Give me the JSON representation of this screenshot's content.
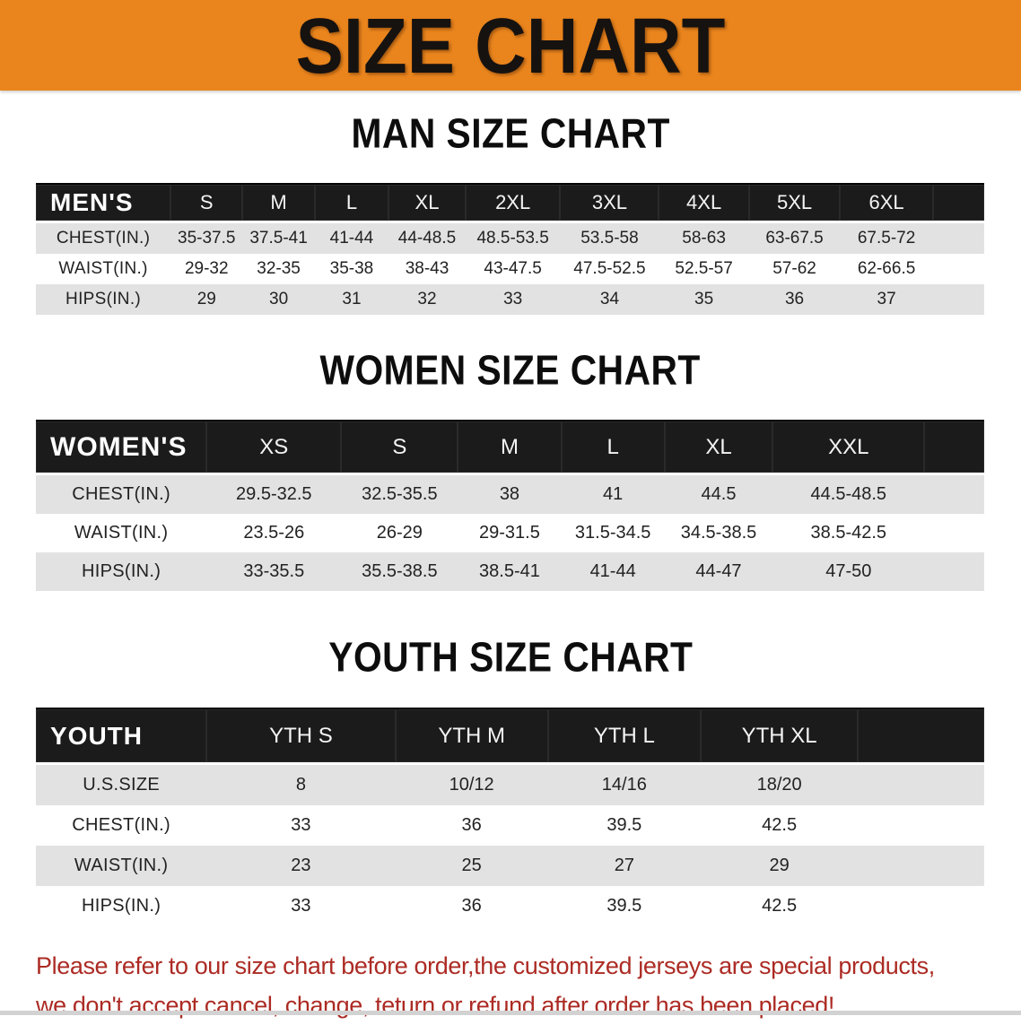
{
  "colors": {
    "banner_bg": "#EA851D",
    "table_header_bg": "#1B1B1B",
    "row_alt_bg": "#E2E2E2",
    "disclaimer_red": "#AC2B24"
  },
  "banner": {
    "title": "SIZE CHART"
  },
  "sections": [
    {
      "heading": "MAN SIZE CHART",
      "table": {
        "header_label": "MEN'S",
        "columns": [
          "S",
          "M",
          "L",
          "XL",
          "2XL",
          "3XL",
          "4XL",
          "5XL",
          "6XL"
        ],
        "rows": [
          {
            "label": "CHEST(IN.)",
            "values": [
              "35-37.5",
              "37.5-41",
              "41-44",
              "44-48.5",
              "48.5-53.5",
              "53.5-58",
              "58-63",
              "63-67.5",
              "67.5-72"
            ]
          },
          {
            "label": "WAIST(IN.)",
            "values": [
              "29-32",
              "32-35",
              "35-38",
              "38-43",
              "43-47.5",
              "47.5-52.5",
              "52.5-57",
              "57-62",
              "62-66.5"
            ]
          },
          {
            "label": "HIPS(IN.)",
            "values": [
              "29",
              "30",
              "31",
              "32",
              "33",
              "34",
              "35",
              "36",
              "37"
            ]
          }
        ]
      }
    },
    {
      "heading": "WOMEN SIZE CHART",
      "table": {
        "header_label": "WOMEN'S",
        "columns": [
          "XS",
          "S",
          "M",
          "L",
          "XL",
          "XXL"
        ],
        "rows": [
          {
            "label": "CHEST(IN.)",
            "values": [
              "29.5-32.5",
              "32.5-35.5",
              "38",
              "41",
              "44.5",
              "44.5-48.5"
            ]
          },
          {
            "label": "WAIST(IN.)",
            "values": [
              "23.5-26",
              "26-29",
              "29-31.5",
              "31.5-34.5",
              "34.5-38.5",
              "38.5-42.5"
            ]
          },
          {
            "label": "HIPS(IN.)",
            "values": [
              "33-35.5",
              "35.5-38.5",
              "38.5-41",
              "41-44",
              "44-47",
              "47-50"
            ]
          }
        ]
      }
    },
    {
      "heading": "YOUTH SIZE CHART",
      "table": {
        "header_label": "YOUTH",
        "columns": [
          "YTH S",
          "YTH M",
          "YTH L",
          "YTH XL"
        ],
        "rows": [
          {
            "label": "U.S.SIZE",
            "values": [
              "8",
              "10/12",
              "14/16",
              "18/20"
            ]
          },
          {
            "label": "CHEST(IN.)",
            "values": [
              "33",
              "36",
              "39.5",
              "42.5"
            ]
          },
          {
            "label": "WAIST(IN.)",
            "values": [
              "23",
              "25",
              "27",
              "29"
            ]
          },
          {
            "label": "HIPS(IN.)",
            "values": [
              "33",
              "36",
              "39.5",
              "42.5"
            ]
          }
        ]
      }
    }
  ],
  "disclaimer": {
    "line1": "Please refer to our size chart before order,the customized jerseys are special products,",
    "line2": "we don't accept cancel, change, teturn or refund after order has been placed!"
  }
}
